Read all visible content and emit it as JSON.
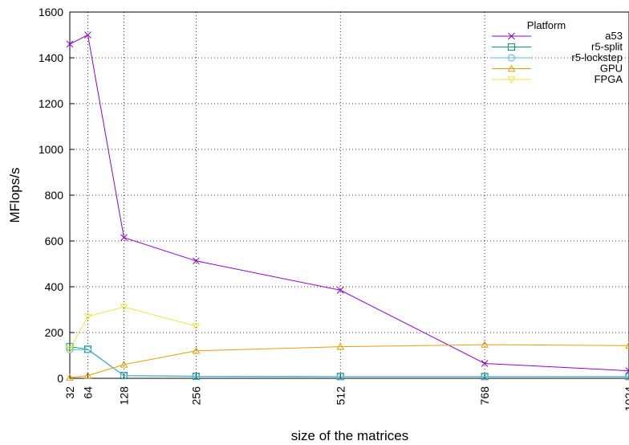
{
  "chart_data": {
    "type": "line",
    "title": "",
    "xlabel": "size of the matrices",
    "ylabel": "MFlops/s",
    "xlim": [
      32,
      1024
    ],
    "ylim": [
      0,
      1600
    ],
    "x_ticks": [
      32,
      64,
      128,
      256,
      512,
      768,
      1024
    ],
    "x_tick_labels": [
      "32",
      "64",
      "128",
      "256",
      "512",
      "768",
      "1024"
    ],
    "y_ticks": [
      0,
      200,
      400,
      600,
      800,
      1000,
      1200,
      1400,
      1600
    ],
    "y_tick_labels": [
      "0",
      "200",
      "400",
      "600",
      "800",
      "1000",
      "1200",
      "1400",
      "1600"
    ],
    "grid": "dotted, x and y",
    "legend": {
      "title": "Platform",
      "placement": "top-right"
    },
    "series": [
      {
        "name": "a53",
        "color": "#9400d3",
        "marker": "x",
        "x": [
          32,
          64,
          128,
          256,
          512,
          768,
          1024
        ],
        "values": [
          1460,
          1500,
          615,
          513,
          385,
          65,
          33
        ]
      },
      {
        "name": "r5-split",
        "color": "#009e73",
        "marker": "square",
        "x": [
          32,
          64,
          128,
          256,
          512,
          768,
          1024
        ],
        "values": [
          138,
          127,
          12,
          9,
          8,
          8,
          8
        ]
      },
      {
        "name": "r5-lockstep",
        "color": "#56b4e9",
        "marker": "circle",
        "x": [
          32,
          64,
          128,
          256,
          512,
          768,
          1024
        ],
        "values": [
          125,
          125,
          11,
          8,
          7,
          7,
          7
        ]
      },
      {
        "name": "GPU",
        "color": "#e69f00",
        "marker": "triangle-up",
        "x": [
          32,
          64,
          128,
          256,
          512,
          768,
          1024
        ],
        "values": [
          3,
          12,
          60,
          120,
          138,
          147,
          143
        ]
      },
      {
        "name": "FPGA",
        "color": "#f0e442",
        "marker": "triangle-down",
        "x": [
          32,
          64,
          128,
          256
        ],
        "values": [
          127,
          270,
          312,
          228
        ]
      }
    ]
  }
}
